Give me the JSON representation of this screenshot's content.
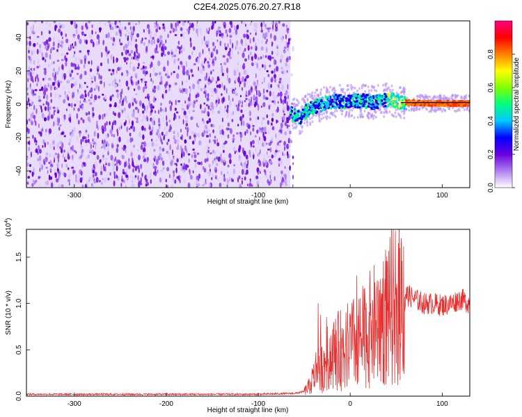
{
  "page_title": "C2E4.2025.076.20.27.R18",
  "colors": {
    "background": "#ffffff",
    "snr_line": "#e83030",
    "spectrogram_noise": "#7a1fe0",
    "fit_line": "#000000"
  },
  "colorbar": {
    "label": "Normalized spectral amplitude",
    "ticks": [
      "0.0",
      "0.2",
      "0.4",
      "0.6",
      "0.8"
    ],
    "range": [
      0,
      1
    ],
    "colormap": [
      "#ffffff",
      "#b080f0",
      "#6a00e0",
      "#0000ff",
      "#00c8ff",
      "#00ff80",
      "#80ff00",
      "#ffff00",
      "#ff8000",
      "#ff0000",
      "#ff0080"
    ]
  },
  "chart_data": [
    {
      "type": "heatmap",
      "title": "",
      "xlabel": "Height of straight line (km)",
      "ylabel": "Frequency (Hz)",
      "xlim": [
        -352,
        130
      ],
      "ylim": [
        -50,
        50
      ],
      "xticks": [
        "-300",
        "-200",
        "-100",
        "0",
        "100"
      ],
      "xtick_values": [
        -300,
        -200,
        -100,
        0,
        100
      ],
      "yticks": [
        "-40",
        "-20",
        "0",
        "20",
        "40"
      ],
      "ytick_values": [
        -40,
        -20,
        0,
        20,
        40
      ],
      "noise_region_end_km": -65,
      "signal_track": {
        "x": [
          -65,
          -55,
          -45,
          -35,
          -25,
          -15,
          -5,
          5,
          15,
          25,
          35,
          45,
          55,
          65,
          80,
          100,
          130
        ],
        "y": [
          -5,
          -8,
          -3,
          -1,
          1,
          2,
          1,
          2,
          2,
          1,
          2,
          3,
          1,
          1,
          0.5,
          0.5,
          0.5
        ]
      }
    },
    {
      "type": "line",
      "title": "",
      "xlabel": "Height of straight line (km)",
      "ylabel": "SNR (10 * v/v)",
      "y_scale_label": "(x10",
      "y_scale_exponent": "4",
      "xlim": [
        -352,
        130
      ],
      "ylim": [
        0,
        1.8
      ],
      "xticks": [
        "-300",
        "-200",
        "-100",
        "0",
        "100"
      ],
      "xtick_values": [
        -300,
        -200,
        -100,
        0,
        100
      ],
      "yticks": [
        "0.0",
        "0.5",
        "1.0",
        "1.5"
      ],
      "ytick_values": [
        0,
        0.5,
        1.0,
        1.5
      ],
      "series": [
        {
          "x": [
            -352,
            -100,
            -60,
            -50,
            -45,
            -40,
            -35,
            -30,
            -25,
            -20,
            -10,
            0,
            10,
            20,
            30,
            40,
            50,
            55,
            60,
            70,
            80,
            90,
            100,
            110,
            120,
            130
          ],
          "y": [
            0.02,
            0.02,
            0.03,
            0.05,
            0.1,
            0.2,
            0.35,
            0.3,
            0.4,
            0.45,
            0.5,
            0.55,
            0.6,
            0.7,
            0.8,
            0.9,
            1.0,
            1.05,
            1.1,
            1.05,
            1.0,
            1.0,
            0.98,
            1.0,
            1.05,
            1.0
          ]
        }
      ]
    }
  ]
}
